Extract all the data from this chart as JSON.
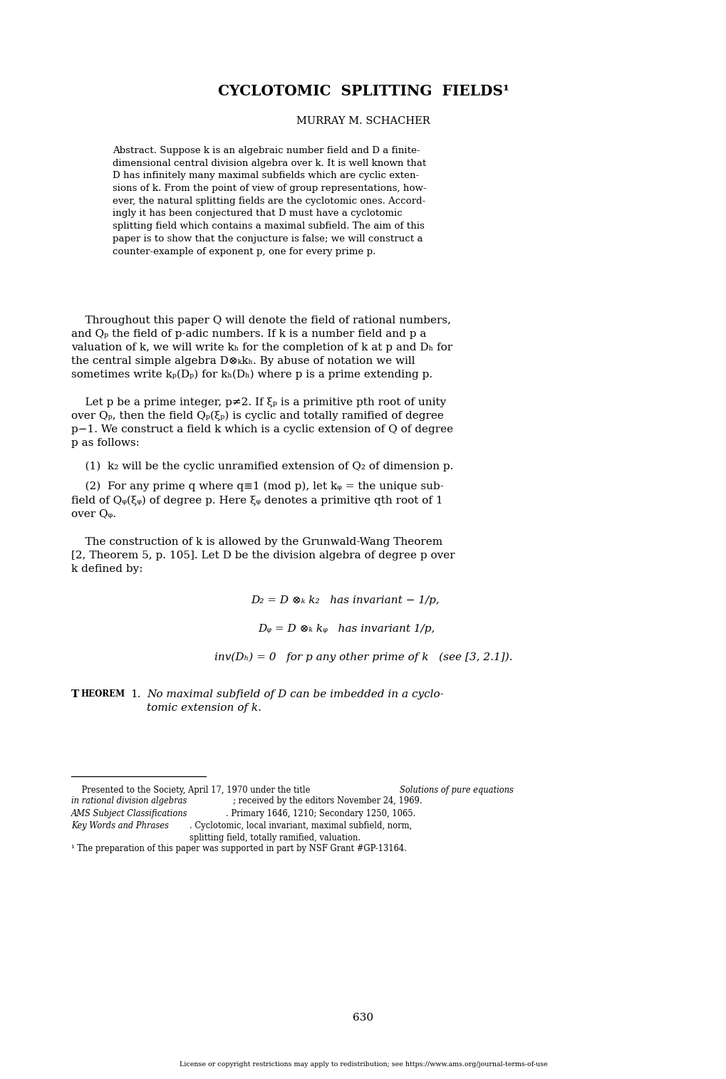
{
  "background_color": "#ffffff",
  "page_width": 10.2,
  "page_height": 15.15,
  "title": "CYCLOTOMIC  SPLITTING  FIELDS¹",
  "author": "MURRAY M. SCHACHER",
  "page_number": "630",
  "license_text": "License or copyright restrictions may apply to redistribution; see https://www.ams.org/journal-terms-of-use"
}
